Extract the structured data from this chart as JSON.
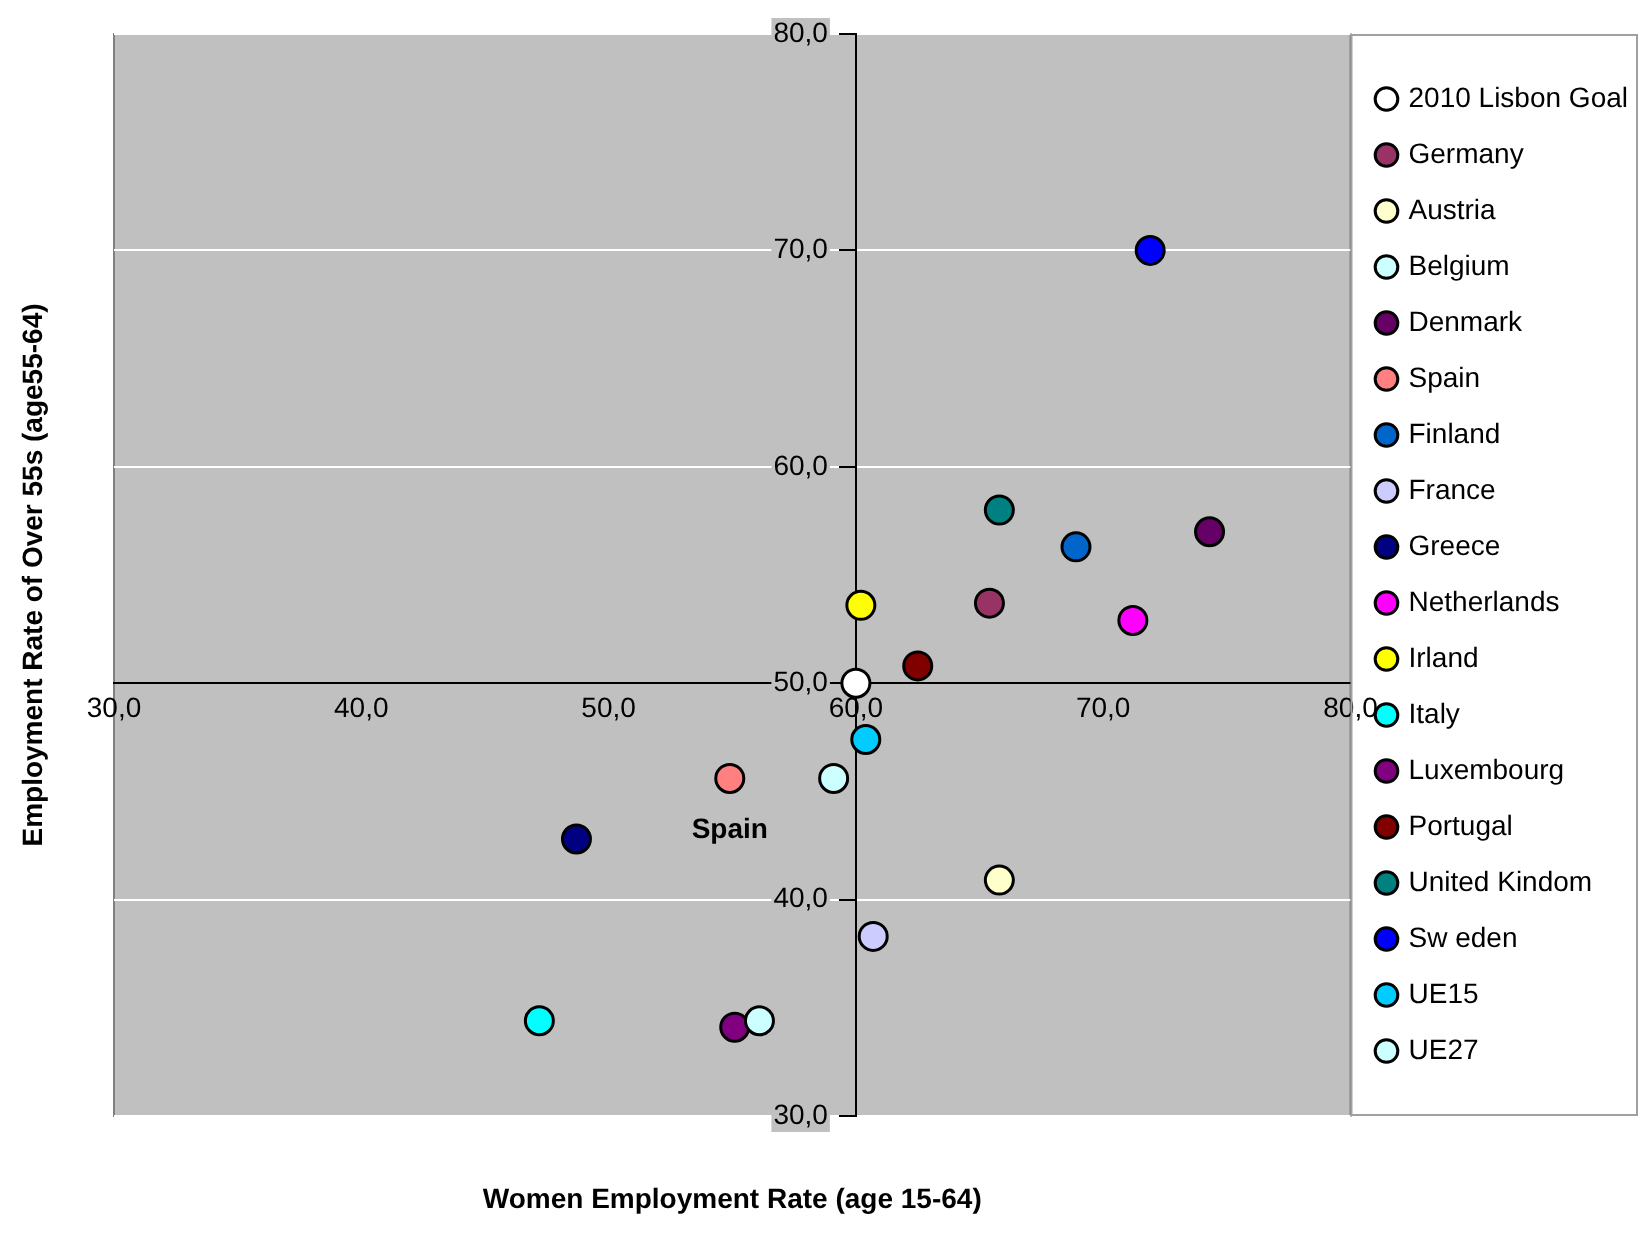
{
  "chart_data": {
    "type": "scatter",
    "xlabel": "Women Employment Rate (age 15-64)",
    "ylabel": "Employment Rate of Over 55s (age55-64)",
    "xlim": [
      30,
      80
    ],
    "ylim": [
      30,
      80
    ],
    "xticks": [
      {
        "value": 30,
        "label": "30,0"
      },
      {
        "value": 40,
        "label": "40,0"
      },
      {
        "value": 50,
        "label": "50,0"
      },
      {
        "value": 60,
        "label": "60,0"
      },
      {
        "value": 70,
        "label": "70,0"
      },
      {
        "value": 80,
        "label": "80,0"
      }
    ],
    "yticks": [
      {
        "value": 30,
        "label": "30,0"
      },
      {
        "value": 40,
        "label": "40,0"
      },
      {
        "value": 50,
        "label": "50,0"
      },
      {
        "value": 60,
        "label": "60,0"
      },
      {
        "value": 70,
        "label": "70,0"
      },
      {
        "value": 80,
        "label": "80,0"
      }
    ],
    "grid": "y",
    "legend": "right",
    "marker": "circle",
    "annotations": [
      {
        "text": "Spain",
        "x": 54.9,
        "y": 45.6
      }
    ],
    "series": [
      {
        "name": "2010 Lisbon Goal",
        "color": "#ffffff",
        "x": [
          60
        ],
        "values": [
          50
        ]
      },
      {
        "name": "Germany",
        "color": "#993366",
        "x": [
          65.4
        ],
        "values": [
          53.7
        ]
      },
      {
        "name": "Austria",
        "color": "#ffffcc",
        "x": [
          65.8
        ],
        "values": [
          40.9
        ]
      },
      {
        "name": "Belgium",
        "color": "#ccffff",
        "x": [
          56.1
        ],
        "values": [
          34.4
        ]
      },
      {
        "name": "Denmark",
        "color": "#660066",
        "x": [
          74.3
        ],
        "values": [
          57.0
        ]
      },
      {
        "name": "Spain",
        "color": "#ff8080",
        "x": [
          54.9
        ],
        "values": [
          45.6
        ]
      },
      {
        "name": "Finland",
        "color": "#0066cc",
        "x": [
          68.9
        ],
        "values": [
          56.3
        ]
      },
      {
        "name": "France",
        "color": "#ccccff",
        "x": [
          60.7
        ],
        "values": [
          38.3
        ]
      },
      {
        "name": "Greece",
        "color": "#000080",
        "x": [
          48.7
        ],
        "values": [
          42.8
        ]
      },
      {
        "name": "Netherlands",
        "color": "#ff00ff",
        "x": [
          71.2
        ],
        "values": [
          52.9
        ]
      },
      {
        "name": "Irland",
        "color": "#ffff00",
        "x": [
          60.2
        ],
        "values": [
          53.6
        ]
      },
      {
        "name": "Italy",
        "color": "#00ffff",
        "x": [
          47.2
        ],
        "values": [
          34.4
        ]
      },
      {
        "name": "Luxembourg",
        "color": "#800080",
        "x": [
          55.1
        ],
        "values": [
          34.1
        ]
      },
      {
        "name": "Portugal",
        "color": "#800000",
        "x": [
          62.5
        ],
        "values": [
          50.8
        ]
      },
      {
        "name": "United Kindom",
        "color": "#008080",
        "x": [
          65.8
        ],
        "values": [
          58.0
        ]
      },
      {
        "name": "Sw eden",
        "color": "#0000ff",
        "x": [
          71.9
        ],
        "values": [
          70.0
        ]
      },
      {
        "name": "UE15",
        "color": "#00ccff",
        "x": [
          60.4
        ],
        "values": [
          47.4
        ]
      },
      {
        "name": "UE27",
        "color": "#ccffff",
        "x": [
          59.1
        ],
        "values": [
          45.6
        ]
      }
    ]
  }
}
